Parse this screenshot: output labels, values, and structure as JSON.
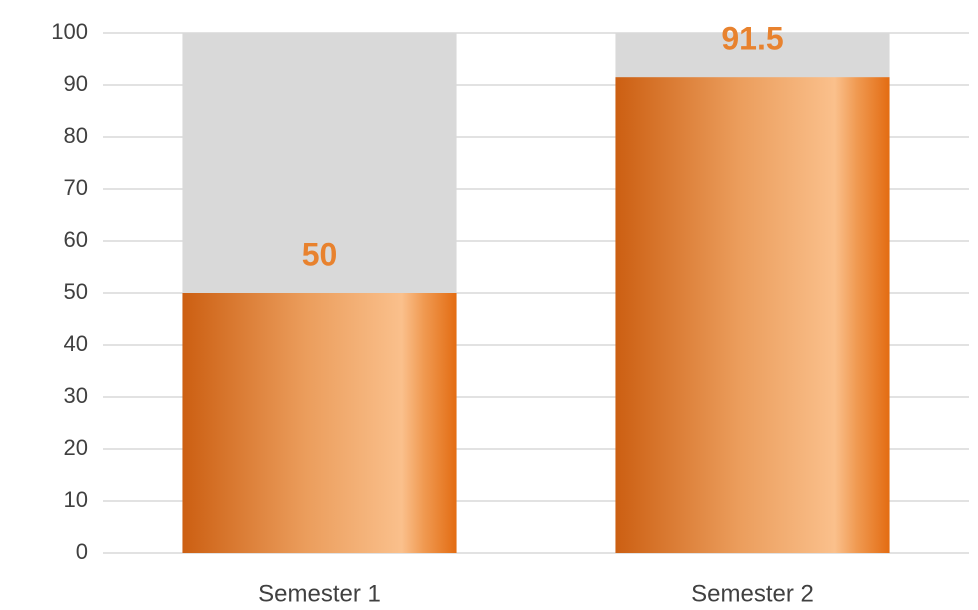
{
  "chart_data": {
    "type": "bar",
    "categories": [
      "Semester 1",
      "Semester 2"
    ],
    "values": [
      50,
      91.5
    ],
    "color": "#e8822e",
    "ylim": [
      0,
      100
    ],
    "yticks": [
      0,
      10,
      20,
      30,
      40,
      50,
      60,
      70,
      80,
      90,
      100
    ],
    "grid": true
  }
}
